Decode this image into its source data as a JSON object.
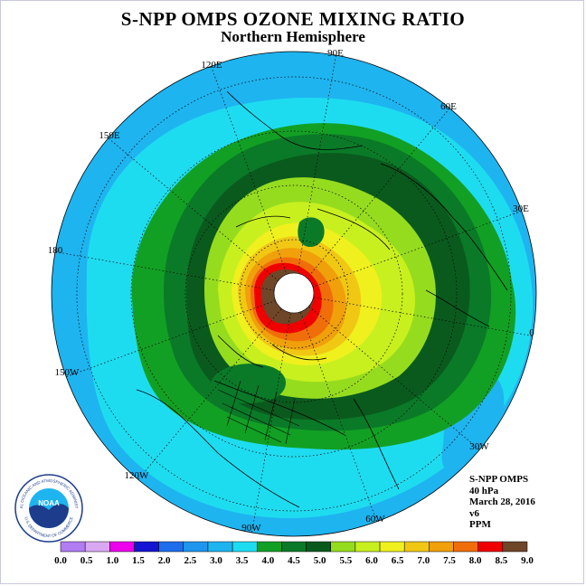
{
  "title": "S-NPP OMPS OZONE MIXING RATIO",
  "subtitle": "Northern Hemisphere",
  "longitude_labels": [
    {
      "id": "90e",
      "text": "90E"
    },
    {
      "id": "60e",
      "text": "60E"
    },
    {
      "id": "30e",
      "text": "30E"
    },
    {
      "id": "0",
      "text": "0"
    },
    {
      "id": "30w",
      "text": "30W"
    },
    {
      "id": "60w",
      "text": "60W"
    },
    {
      "id": "90w",
      "text": "90W"
    },
    {
      "id": "120w",
      "text": "120W"
    },
    {
      "id": "150w",
      "text": "150W"
    },
    {
      "id": "180",
      "text": "180"
    },
    {
      "id": "150e",
      "text": "150E"
    },
    {
      "id": "120e",
      "text": "120E"
    }
  ],
  "info": {
    "instrument": "S-NPP OMPS",
    "level": "40 hPa",
    "date": "March 28, 2016",
    "version": "v6",
    "units": "PPM"
  },
  "logo": {
    "text": "NOAA",
    "ring_text": "NATIONAL OCEANIC AND ATMOSPHERIC ADMINISTRATION",
    "ring_text_bottom": "U.S. DEPARTMENT OF COMMERCE"
  },
  "colorbar": {
    "ticks": [
      "0.0",
      "0.5",
      "1.0",
      "1.5",
      "2.0",
      "2.5",
      "3.0",
      "3.5",
      "4.0",
      "4.5",
      "5.0",
      "5.5",
      "6.0",
      "6.5",
      "7.0",
      "7.5",
      "8.0",
      "8.5",
      "9.0"
    ],
    "colors": [
      "#b27cf2",
      "#d9a8f3",
      "#ee00ee",
      "#1414d2",
      "#1e6eeb",
      "#1e96f0",
      "#1eb4f0",
      "#1edcf0",
      "#12a024",
      "#0a7a28",
      "#0a5a1e",
      "#96dc1e",
      "#c8f01e",
      "#f0f01e",
      "#f0c814",
      "#f0a00a",
      "#f06e0a",
      "#f00000",
      "#6e4628"
    ]
  },
  "colors": {
    "ocean_far": "#1eb4f0",
    "ring_cyan": "#1edcf0",
    "green_light": "#12a024",
    "green_mid": "#0a7a28",
    "green_dark": "#0a5a1e",
    "yellow_green": "#96dc1e",
    "yellow": "#f0f01e",
    "orange": "#f0a00a",
    "red": "#f00000",
    "brown": "#6e4628"
  }
}
